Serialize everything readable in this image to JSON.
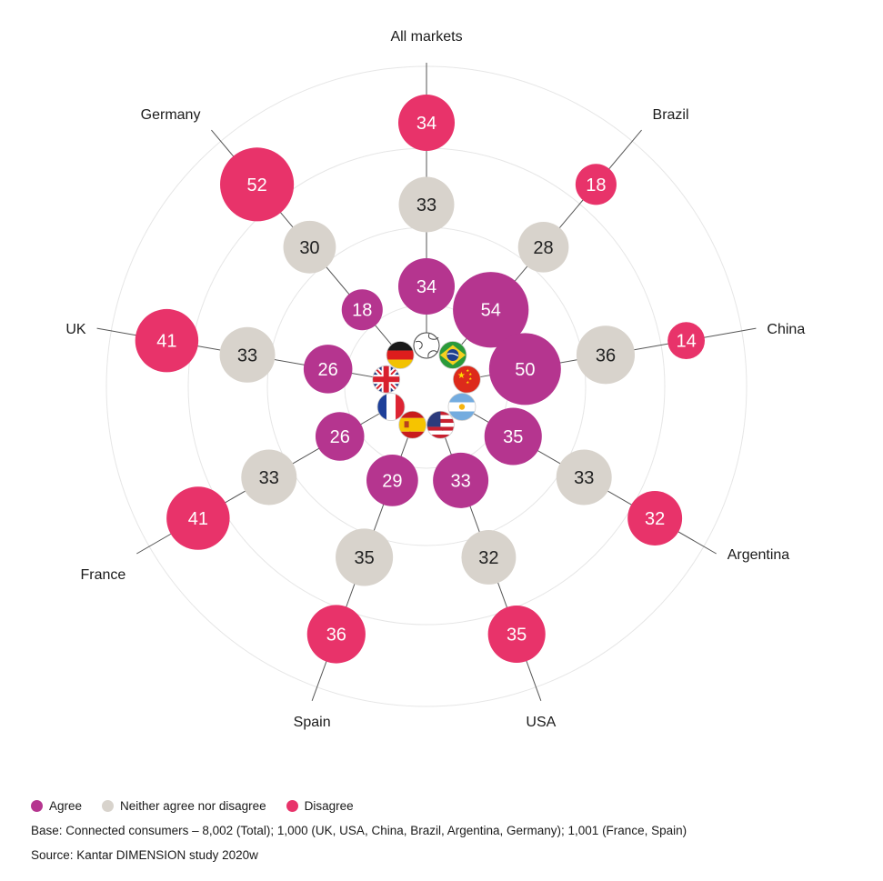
{
  "chart_data": {
    "type": "radial-bubble",
    "categories": [
      "All markets",
      "Brazil",
      "China",
      "Argentina",
      "USA",
      "Spain",
      "France",
      "UK",
      "Germany"
    ],
    "series": [
      {
        "name": "Agree",
        "values": [
          34,
          54,
          50,
          35,
          33,
          29,
          26,
          26,
          18
        ]
      },
      {
        "name": "Neither agree nor disagree",
        "values": [
          33,
          28,
          36,
          33,
          32,
          35,
          33,
          33,
          30
        ]
      },
      {
        "name": "Disagree",
        "values": [
          34,
          18,
          14,
          32,
          35,
          36,
          41,
          41,
          52
        ]
      }
    ],
    "markets": [
      {
        "name": "All markets",
        "flag": "globe-icon"
      },
      {
        "name": "Brazil",
        "flag": "brazil-flag-icon"
      },
      {
        "name": "China",
        "flag": "china-flag-icon"
      },
      {
        "name": "Argentina",
        "flag": "argentina-flag-icon"
      },
      {
        "name": "USA",
        "flag": "usa-flag-icon"
      },
      {
        "name": "Spain",
        "flag": "spain-flag-icon"
      },
      {
        "name": "France",
        "flag": "france-flag-icon"
      },
      {
        "name": "UK",
        "flag": "uk-flag-icon"
      },
      {
        "name": "Germany",
        "flag": "germany-flag-icon"
      }
    ],
    "grid": true
  },
  "colors": {
    "agree": "#b5358f",
    "neither": "#d8d3cc",
    "disagree": "#e8336a",
    "grid": "#e6e6e6",
    "line": "#555555"
  },
  "legend": {
    "agree": "Agree",
    "neither": "Neither agree nor disagree",
    "disagree": "Disagree"
  },
  "footnotes": {
    "base": "Base: Connected consumers – 8,002 (Total); 1,000 (UK, USA, China, Brazil, Argentina, Germany); 1,001 (France, Spain)",
    "source": "Source: Kantar DIMENSION study 2020w"
  }
}
